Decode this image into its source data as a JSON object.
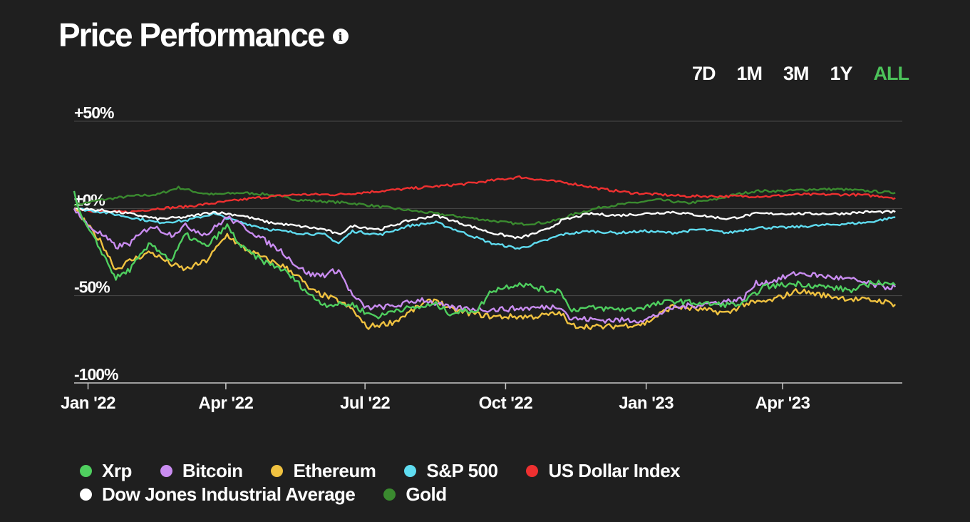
{
  "header": {
    "title": "Price Performance",
    "info_icon": "info-icon"
  },
  "ranges": [
    {
      "label": "7D",
      "active": false
    },
    {
      "label": "1M",
      "active": false
    },
    {
      "label": "3M",
      "active": false
    },
    {
      "label": "1Y",
      "active": false
    },
    {
      "label": "ALL",
      "active": true
    }
  ],
  "colors": {
    "background": "#1f1f1f",
    "accent": "#4cc25a"
  },
  "chart_data": {
    "type": "line",
    "title": "Price Performance",
    "xlabel": "",
    "ylabel": "",
    "ylim": [
      -100,
      50
    ],
    "xlim": [
      0,
      595
    ],
    "y_ticks": [
      {
        "value": 50,
        "label": "+50%"
      },
      {
        "value": 0,
        "label": "±0%"
      },
      {
        "value": -50,
        "label": "-50%"
      },
      {
        "value": -100,
        "label": "-100%"
      }
    ],
    "x_ticks": [
      {
        "day": 10,
        "label": "Jan '22"
      },
      {
        "day": 109,
        "label": "Apr '22"
      },
      {
        "day": 209,
        "label": "Jul '22"
      },
      {
        "day": 310,
        "label": "Oct '22"
      },
      {
        "day": 411,
        "label": "Jan '23"
      },
      {
        "day": 509,
        "label": "Apr '23"
      }
    ],
    "series": [
      {
        "name": "Xrp",
        "color": "#4fcf5f",
        "points": [
          [
            0,
            10
          ],
          [
            5,
            -5
          ],
          [
            20,
            -25
          ],
          [
            30,
            -40
          ],
          [
            40,
            -35
          ],
          [
            55,
            -20
          ],
          [
            70,
            -30
          ],
          [
            80,
            -15
          ],
          [
            95,
            -22
          ],
          [
            110,
            -10
          ],
          [
            120,
            -22
          ],
          [
            135,
            -30
          ],
          [
            150,
            -35
          ],
          [
            160,
            -42
          ],
          [
            170,
            -50
          ],
          [
            180,
            -55
          ],
          [
            200,
            -55
          ],
          [
            210,
            -60
          ],
          [
            220,
            -62
          ],
          [
            230,
            -58
          ],
          [
            245,
            -57
          ],
          [
            260,
            -55
          ],
          [
            270,
            -60
          ],
          [
            290,
            -58
          ],
          [
            300,
            -47
          ],
          [
            320,
            -43
          ],
          [
            340,
            -47
          ],
          [
            350,
            -47
          ],
          [
            356,
            -58
          ],
          [
            370,
            -57
          ],
          [
            400,
            -58
          ],
          [
            430,
            -53
          ],
          [
            460,
            -55
          ],
          [
            480,
            -55
          ],
          [
            495,
            -45
          ],
          [
            520,
            -43
          ],
          [
            540,
            -45
          ],
          [
            560,
            -47
          ],
          [
            575,
            -42
          ],
          [
            590,
            -44
          ]
        ]
      },
      {
        "name": "Bitcoin",
        "color": "#c98cf0",
        "points": [
          [
            0,
            0
          ],
          [
            10,
            -10
          ],
          [
            20,
            -15
          ],
          [
            30,
            -22
          ],
          [
            40,
            -20
          ],
          [
            55,
            -10
          ],
          [
            70,
            -15
          ],
          [
            80,
            -10
          ],
          [
            95,
            -15
          ],
          [
            110,
            -5
          ],
          [
            125,
            -12
          ],
          [
            140,
            -20
          ],
          [
            150,
            -25
          ],
          [
            160,
            -33
          ],
          [
            170,
            -38
          ],
          [
            180,
            -38
          ],
          [
            190,
            -35
          ],
          [
            200,
            -50
          ],
          [
            210,
            -57
          ],
          [
            230,
            -56
          ],
          [
            250,
            -52
          ],
          [
            270,
            -57
          ],
          [
            300,
            -58
          ],
          [
            330,
            -57
          ],
          [
            350,
            -56
          ],
          [
            356,
            -63
          ],
          [
            380,
            -64
          ],
          [
            410,
            -64
          ],
          [
            430,
            -57
          ],
          [
            450,
            -55
          ],
          [
            470,
            -53
          ],
          [
            480,
            -52
          ],
          [
            490,
            -43
          ],
          [
            500,
            -42
          ],
          [
            520,
            -37
          ],
          [
            540,
            -39
          ],
          [
            560,
            -41
          ],
          [
            580,
            -45
          ],
          [
            590,
            -45
          ]
        ]
      },
      {
        "name": "Ethereum",
        "color": "#f0c240",
        "points": [
          [
            0,
            0
          ],
          [
            10,
            -10
          ],
          [
            20,
            -20
          ],
          [
            30,
            -35
          ],
          [
            40,
            -30
          ],
          [
            55,
            -25
          ],
          [
            70,
            -32
          ],
          [
            80,
            -35
          ],
          [
            95,
            -30
          ],
          [
            105,
            -20
          ],
          [
            110,
            -15
          ],
          [
            120,
            -22
          ],
          [
            135,
            -28
          ],
          [
            150,
            -33
          ],
          [
            160,
            -38
          ],
          [
            170,
            -47
          ],
          [
            180,
            -50
          ],
          [
            190,
            -53
          ],
          [
            200,
            -58
          ],
          [
            210,
            -68
          ],
          [
            230,
            -65
          ],
          [
            250,
            -55
          ],
          [
            260,
            -52
          ],
          [
            270,
            -58
          ],
          [
            300,
            -62
          ],
          [
            330,
            -62
          ],
          [
            350,
            -60
          ],
          [
            356,
            -67
          ],
          [
            380,
            -68
          ],
          [
            410,
            -66
          ],
          [
            430,
            -56
          ],
          [
            450,
            -58
          ],
          [
            470,
            -60
          ],
          [
            480,
            -55
          ],
          [
            500,
            -53
          ],
          [
            520,
            -47
          ],
          [
            540,
            -50
          ],
          [
            560,
            -52
          ],
          [
            580,
            -53
          ],
          [
            590,
            -55
          ]
        ]
      },
      {
        "name": "S&P 500",
        "color": "#5fdcf0",
        "points": [
          [
            0,
            0
          ],
          [
            20,
            -2
          ],
          [
            40,
            -5
          ],
          [
            60,
            -8
          ],
          [
            80,
            -7
          ],
          [
            100,
            -3
          ],
          [
            120,
            -8
          ],
          [
            140,
            -12
          ],
          [
            160,
            -14
          ],
          [
            180,
            -15
          ],
          [
            190,
            -20
          ],
          [
            200,
            -13
          ],
          [
            220,
            -15
          ],
          [
            240,
            -10
          ],
          [
            260,
            -8
          ],
          [
            280,
            -14
          ],
          [
            300,
            -20
          ],
          [
            320,
            -23
          ],
          [
            340,
            -18
          ],
          [
            350,
            -15
          ],
          [
            370,
            -13
          ],
          [
            390,
            -14
          ],
          [
            410,
            -13
          ],
          [
            430,
            -14
          ],
          [
            450,
            -12
          ],
          [
            470,
            -14
          ],
          [
            490,
            -11
          ],
          [
            510,
            -11
          ],
          [
            530,
            -10
          ],
          [
            550,
            -9
          ],
          [
            570,
            -8
          ],
          [
            590,
            -5
          ]
        ]
      },
      {
        "name": "US Dollar Index",
        "color": "#ee3030",
        "points": [
          [
            0,
            0
          ],
          [
            20,
            -2
          ],
          [
            40,
            -2
          ],
          [
            60,
            0
          ],
          [
            80,
            1
          ],
          [
            100,
            3
          ],
          [
            130,
            6
          ],
          [
            160,
            8
          ],
          [
            190,
            8
          ],
          [
            220,
            10
          ],
          [
            250,
            12
          ],
          [
            280,
            14
          ],
          [
            300,
            16
          ],
          [
            320,
            18
          ],
          [
            340,
            16
          ],
          [
            360,
            14
          ],
          [
            380,
            11
          ],
          [
            400,
            9
          ],
          [
            420,
            8
          ],
          [
            440,
            7
          ],
          [
            470,
            7
          ],
          [
            500,
            7
          ],
          [
            520,
            8
          ],
          [
            540,
            8
          ],
          [
            560,
            8
          ],
          [
            580,
            7
          ],
          [
            590,
            6
          ]
        ]
      },
      {
        "name": "Dow Jones Industrial Average",
        "color": "#ffffff",
        "points": [
          [
            0,
            0
          ],
          [
            20,
            -1
          ],
          [
            40,
            -3
          ],
          [
            60,
            -6
          ],
          [
            80,
            -5
          ],
          [
            100,
            -2
          ],
          [
            120,
            -4
          ],
          [
            140,
            -8
          ],
          [
            160,
            -10
          ],
          [
            180,
            -12
          ],
          [
            190,
            -15
          ],
          [
            200,
            -10
          ],
          [
            220,
            -12
          ],
          [
            240,
            -7
          ],
          [
            260,
            -4
          ],
          [
            280,
            -9
          ],
          [
            300,
            -14
          ],
          [
            320,
            -17
          ],
          [
            340,
            -12
          ],
          [
            350,
            -7
          ],
          [
            370,
            -3
          ],
          [
            390,
            -4
          ],
          [
            410,
            -3
          ],
          [
            430,
            -2
          ],
          [
            450,
            -4
          ],
          [
            470,
            -6
          ],
          [
            490,
            -3
          ],
          [
            510,
            -3
          ],
          [
            530,
            -3
          ],
          [
            550,
            -3
          ],
          [
            570,
            -2
          ],
          [
            590,
            -2
          ]
        ]
      },
      {
        "name": "Gold",
        "color": "#3a8a2f",
        "points": [
          [
            0,
            2
          ],
          [
            20,
            5
          ],
          [
            40,
            7
          ],
          [
            60,
            8
          ],
          [
            75,
            12
          ],
          [
            90,
            9
          ],
          [
            100,
            8
          ],
          [
            120,
            9
          ],
          [
            140,
            8
          ],
          [
            160,
            5
          ],
          [
            180,
            4
          ],
          [
            200,
            3
          ],
          [
            220,
            1
          ],
          [
            240,
            -1
          ],
          [
            260,
            -3
          ],
          [
            280,
            -5
          ],
          [
            300,
            -7
          ],
          [
            320,
            -9
          ],
          [
            340,
            -8
          ],
          [
            350,
            -6
          ],
          [
            360,
            -3
          ],
          [
            380,
            1
          ],
          [
            400,
            3
          ],
          [
            420,
            5
          ],
          [
            440,
            3
          ],
          [
            460,
            5
          ],
          [
            475,
            8
          ],
          [
            490,
            10
          ],
          [
            510,
            10
          ],
          [
            530,
            11
          ],
          [
            550,
            11
          ],
          [
            570,
            10
          ],
          [
            590,
            9
          ]
        ]
      }
    ]
  },
  "legend": {
    "rows": [
      [
        {
          "label": "Xrp",
          "color": "#4fcf5f"
        },
        {
          "label": "Bitcoin",
          "color": "#c98cf0"
        },
        {
          "label": "Ethereum",
          "color": "#f0c240"
        },
        {
          "label": "S&P 500",
          "color": "#5fdcf0"
        },
        {
          "label": "US Dollar Index",
          "color": "#ee3030"
        }
      ],
      [
        {
          "label": "Dow Jones Industrial Average",
          "color": "#ffffff"
        },
        {
          "label": "Gold",
          "color": "#3a8a2f"
        }
      ]
    ]
  }
}
